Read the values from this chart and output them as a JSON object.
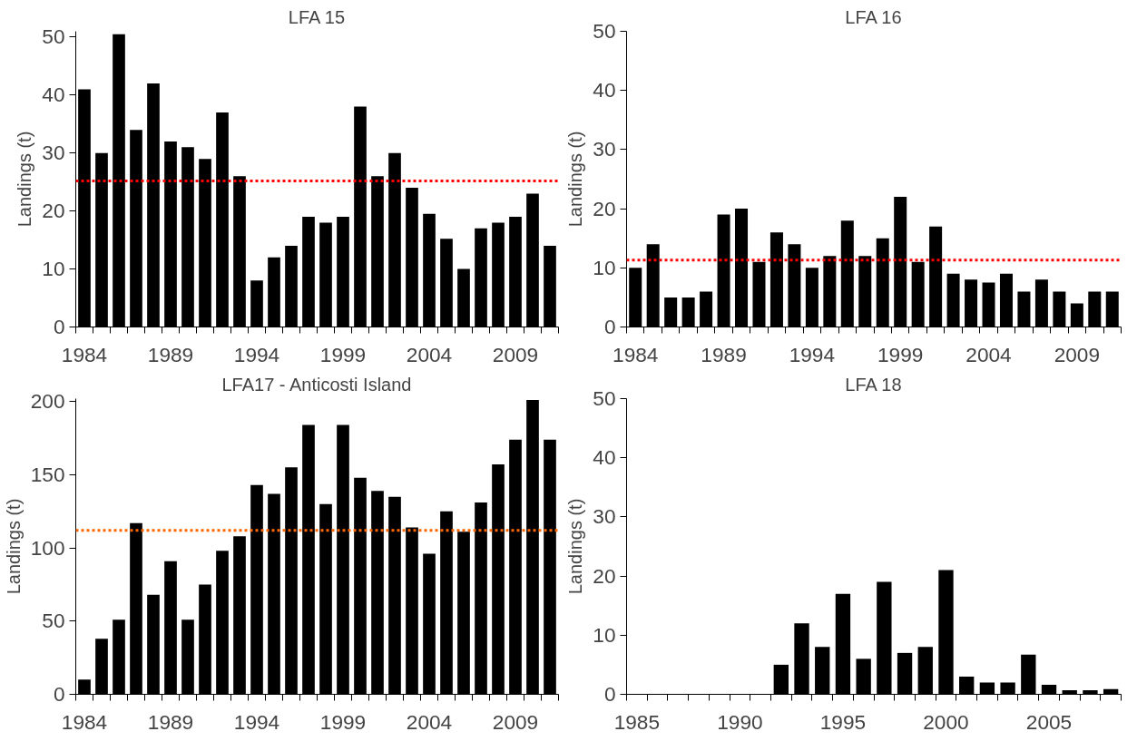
{
  "chart_data": [
    {
      "type": "bar",
      "title": "LFA 15",
      "ylabel": "Landings (t)",
      "color": "#000000",
      "categories": [
        "1984",
        null,
        null,
        null,
        null,
        "1989",
        null,
        null,
        null,
        null,
        "1994",
        null,
        null,
        null,
        null,
        "1999",
        null,
        null,
        null,
        null,
        "2004",
        null,
        null,
        null,
        null,
        "2009",
        null,
        null
      ],
      "values": [
        41,
        30,
        50.5,
        34,
        42,
        32,
        31,
        29,
        37,
        26,
        8,
        12,
        14,
        19,
        18,
        19,
        38,
        26,
        30,
        24,
        19.5,
        15.2,
        10,
        17,
        18,
        19,
        23,
        14
      ],
      "ylim": [
        0,
        51
      ],
      "yticks": [
        0,
        10,
        20,
        30,
        40,
        50
      ],
      "ref_lines": [
        {
          "axis": "y",
          "value": 25.2,
          "color": "#ff0000",
          "line_style": "dotted"
        }
      ]
    },
    {
      "type": "bar",
      "title": "LFA 16",
      "ylabel": "Landings (t)",
      "color": "#000000",
      "categories": [
        "1984",
        null,
        null,
        null,
        null,
        "1989",
        null,
        null,
        null,
        null,
        "1994",
        null,
        null,
        null,
        null,
        "1999",
        null,
        null,
        null,
        null,
        "2004",
        null,
        null,
        null,
        null,
        "2009",
        null,
        null
      ],
      "values": [
        10,
        14,
        5,
        5,
        6,
        19,
        20,
        11,
        16,
        14,
        10,
        12,
        18,
        12,
        15,
        22,
        11,
        17,
        9,
        8,
        7.5,
        9,
        6,
        8,
        6,
        4,
        6,
        6
      ],
      "ylim": [
        0,
        50
      ],
      "yticks": [
        0,
        10,
        20,
        30,
        40,
        50
      ],
      "ref_lines": [
        {
          "axis": "y",
          "value": 11.3,
          "color": "#ff0000",
          "line_style": "dotted"
        }
      ]
    },
    {
      "type": "bar",
      "title": "LFA17 - Anticosti Island",
      "ylabel": "Landings (t)",
      "color": "#000000",
      "categories": [
        "1984",
        null,
        null,
        null,
        null,
        "1989",
        null,
        null,
        null,
        null,
        "1994",
        null,
        null,
        null,
        null,
        "1999",
        null,
        null,
        null,
        null,
        "2004",
        null,
        null,
        null,
        null,
        "2009",
        null,
        null
      ],
      "values": [
        10,
        38,
        51,
        117,
        68,
        91,
        51,
        75,
        98,
        108,
        143,
        137,
        155,
        184,
        130,
        184,
        148,
        139,
        135,
        114,
        96,
        125,
        111,
        131,
        157,
        174,
        201,
        174
      ],
      "ylim": [
        0,
        202
      ],
      "yticks": [
        0,
        50,
        100,
        150,
        200
      ],
      "ref_lines": [
        {
          "axis": "y",
          "value": 112,
          "color": "#ff6600",
          "line_style": "dotted"
        }
      ]
    },
    {
      "type": "bar",
      "title": "LFA 18",
      "ylabel": "Landings (t)",
      "color": "#000000",
      "categories": [
        "1985",
        null,
        null,
        null,
        null,
        "1990",
        null,
        null,
        null,
        null,
        "1995",
        null,
        null,
        null,
        null,
        "2000",
        null,
        null,
        null,
        null,
        "2005",
        null,
        null,
        null
      ],
      "values": [
        0,
        0,
        0,
        0,
        0,
        0,
        0,
        5,
        12,
        8,
        17,
        6,
        19,
        7,
        8,
        21,
        3,
        2,
        2,
        6.7,
        1.6,
        0.7,
        0.7,
        0.9
      ],
      "ylim": [
        0,
        50
      ],
      "yticks": [
        0,
        10,
        20,
        30,
        40,
        50
      ]
    }
  ]
}
